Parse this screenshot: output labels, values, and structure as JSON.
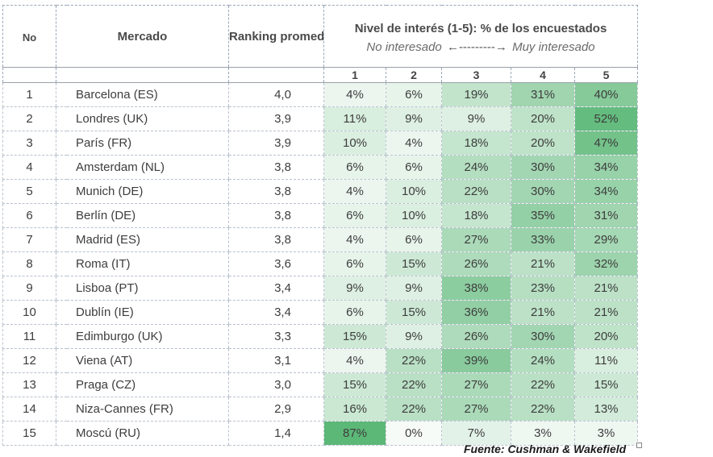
{
  "headers": {
    "no": "No",
    "market": "Mercado",
    "ranking": "Ranking promedio",
    "interest_title": "Nivel de interés (1-5): % de los encuestados",
    "scale_low": "No interesado",
    "scale_arrow": "←---------→",
    "scale_high": "Muy interesado",
    "levels": [
      "1",
      "2",
      "3",
      "4",
      "5"
    ]
  },
  "rows": [
    {
      "no": "1",
      "market": "Barcelona  (ES)",
      "rank": "4,0",
      "p": [
        "4%",
        "6%",
        "19%",
        "31%",
        "40%"
      ],
      "v": [
        4,
        6,
        19,
        31,
        40
      ]
    },
    {
      "no": "2",
      "market": "Londres  (UK)",
      "rank": "3,9",
      "p": [
        "11%",
        "9%",
        "9%",
        "20%",
        "52%"
      ],
      "v": [
        11,
        9,
        9,
        20,
        52
      ]
    },
    {
      "no": "3",
      "market": "París  (FR)",
      "rank": "3,9",
      "p": [
        "10%",
        "4%",
        "18%",
        "20%",
        "47%"
      ],
      "v": [
        10,
        4,
        18,
        20,
        47
      ]
    },
    {
      "no": "4",
      "market": "Amsterdam  (NL)",
      "rank": "3,8",
      "p": [
        "6%",
        "6%",
        "24%",
        "30%",
        "34%"
      ],
      "v": [
        6,
        6,
        24,
        30,
        34
      ]
    },
    {
      "no": "5",
      "market": "Munich  (DE)",
      "rank": "3,8",
      "p": [
        "4%",
        "10%",
        "22%",
        "30%",
        "34%"
      ],
      "v": [
        4,
        10,
        22,
        30,
        34
      ]
    },
    {
      "no": "6",
      "market": "Berlín  (DE)",
      "rank": "3,8",
      "p": [
        "6%",
        "10%",
        "18%",
        "35%",
        "31%"
      ],
      "v": [
        6,
        10,
        18,
        35,
        31
      ]
    },
    {
      "no": "7",
      "market": "Madrid  (ES)",
      "rank": "3,8",
      "p": [
        "4%",
        "6%",
        "27%",
        "33%",
        "29%"
      ],
      "v": [
        4,
        6,
        27,
        33,
        29
      ]
    },
    {
      "no": "8",
      "market": "Roma  (IT)",
      "rank": "3,6",
      "p": [
        "6%",
        "15%",
        "26%",
        "21%",
        "32%"
      ],
      "v": [
        6,
        15,
        26,
        21,
        32
      ]
    },
    {
      "no": "9",
      "market": "Lisboa  (PT)",
      "rank": "3,4",
      "p": [
        "9%",
        "9%",
        "38%",
        "23%",
        "21%"
      ],
      "v": [
        9,
        9,
        38,
        23,
        21
      ]
    },
    {
      "no": "10",
      "market": "Dublín  (IE)",
      "rank": "3,4",
      "p": [
        "6%",
        "15%",
        "36%",
        "21%",
        "21%"
      ],
      "v": [
        6,
        15,
        36,
        21,
        21
      ]
    },
    {
      "no": "11",
      "market": "Edimburgo  (UK)",
      "rank": "3,3",
      "p": [
        "15%",
        "9%",
        "26%",
        "30%",
        "20%"
      ],
      "v": [
        15,
        9,
        26,
        30,
        20
      ]
    },
    {
      "no": "12",
      "market": "Viena  (AT)",
      "rank": "3,1",
      "p": [
        "4%",
        "22%",
        "39%",
        "24%",
        "11%"
      ],
      "v": [
        4,
        22,
        39,
        24,
        11
      ]
    },
    {
      "no": "13",
      "market": "Praga  (CZ)",
      "rank": "3,0",
      "p": [
        "15%",
        "22%",
        "27%",
        "22%",
        "15%"
      ],
      "v": [
        15,
        22,
        27,
        22,
        15
      ]
    },
    {
      "no": "14",
      "market": "Niza-Cannes  (FR)",
      "rank": "2,9",
      "p": [
        "16%",
        "22%",
        "27%",
        "22%",
        "13%"
      ],
      "v": [
        16,
        22,
        27,
        22,
        13
      ]
    },
    {
      "no": "15",
      "market": "Moscú  (RU)",
      "rank": "1,4",
      "p": [
        "87%",
        "0%",
        "7%",
        "3%",
        "3%"
      ],
      "v": [
        87,
        0,
        7,
        3,
        3
      ]
    }
  ],
  "source": "Fuente: Cushman & Wakefield",
  "colors": {
    "heat_low": "#f7fbf8",
    "heat_high": "#5cb877",
    "grid": "#9aa7b8"
  }
}
